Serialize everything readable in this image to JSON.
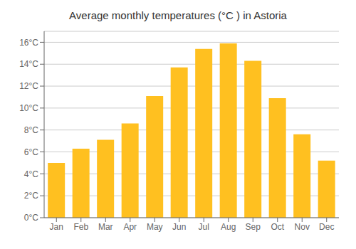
{
  "chart_data": {
    "type": "bar",
    "title": "Average monthly temperatures (°C ) in Astoria",
    "categories": [
      "Jan",
      "Feb",
      "Mar",
      "Apr",
      "May",
      "Jun",
      "Jul",
      "Aug",
      "Sep",
      "Oct",
      "Nov",
      "Dec"
    ],
    "values": [
      5.0,
      6.3,
      7.1,
      8.6,
      11.1,
      13.7,
      15.4,
      15.9,
      14.3,
      10.9,
      7.6,
      5.2
    ],
    "color": "#FFC020",
    "ylim": [
      0,
      17
    ],
    "yticks": [
      {
        "value": 0,
        "label": "0°C"
      },
      {
        "value": 2,
        "label": "2°C"
      },
      {
        "value": 4,
        "label": "4°C"
      },
      {
        "value": 6,
        "label": "6°C"
      },
      {
        "value": 8,
        "label": "8°C"
      },
      {
        "value": 10,
        "label": "10°C"
      },
      {
        "value": 12,
        "label": "12°C"
      },
      {
        "value": 14,
        "label": "14°C"
      },
      {
        "value": 16,
        "label": "16°C"
      }
    ],
    "grid": true
  }
}
